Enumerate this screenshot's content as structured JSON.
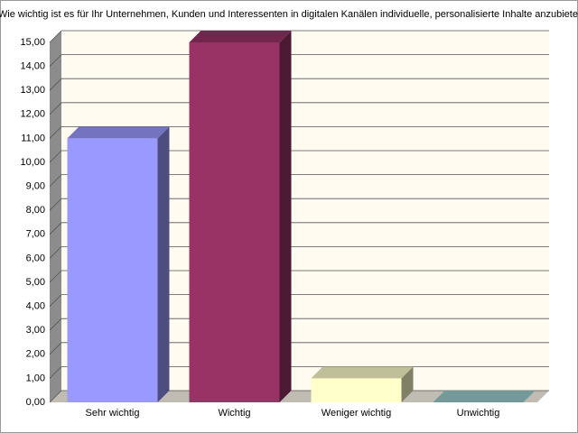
{
  "chart_data": {
    "type": "bar3d",
    "title": "Wie wichtig ist es für Ihr Unternehmen, Kunden und Interessenten in digitalen Kanälen individuelle, personalisierte Inhalte anzubieten",
    "categories": [
      "Sehr wichtig",
      "Wichtig",
      "Weniger wichtig",
      "Unwichtig"
    ],
    "values": [
      11,
      15,
      1,
      0
    ],
    "colors": [
      "#9999ff",
      "#993366",
      "#ffffcc",
      "#99cccc"
    ],
    "ylim": [
      0,
      15
    ],
    "yticks": [
      {
        "value": 0,
        "label": "0,00"
      },
      {
        "value": 1,
        "label": "1,00"
      },
      {
        "value": 2,
        "label": "2,00"
      },
      {
        "value": 3,
        "label": "3,00"
      },
      {
        "value": 4,
        "label": "4,00"
      },
      {
        "value": 5,
        "label": "5,00"
      },
      {
        "value": 6,
        "label": "6,00"
      },
      {
        "value": 7,
        "label": "7,00"
      },
      {
        "value": 8,
        "label": "8,00"
      },
      {
        "value": 9,
        "label": "9,00"
      },
      {
        "value": 10,
        "label": "10,00"
      },
      {
        "value": 11,
        "label": "11,00"
      },
      {
        "value": 12,
        "label": "12,00"
      },
      {
        "value": 13,
        "label": "13,00"
      },
      {
        "value": 14,
        "label": "14,00"
      },
      {
        "value": 15,
        "label": "15,00"
      }
    ],
    "grid": true
  }
}
